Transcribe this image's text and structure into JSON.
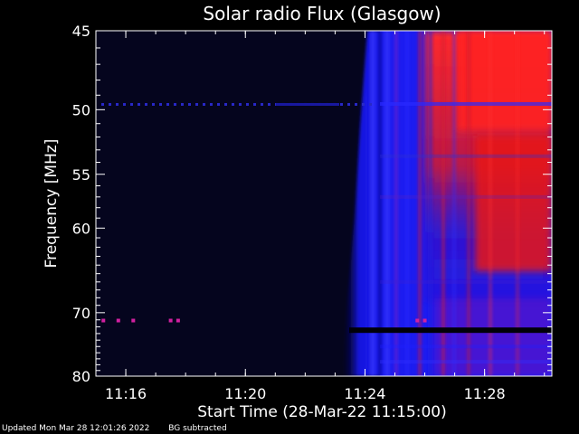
{
  "chart_data": {
    "type": "heatmap",
    "title": "Solar radio Flux (Glasgow)",
    "xlabel": "Start Time (28-Mar-22 11:15:00)",
    "ylabel": "Frequency [MHz]",
    "x_ticks": [
      "11:16",
      "11:20",
      "11:24",
      "11:28"
    ],
    "y_ticks": [
      45,
      50,
      55,
      60,
      70,
      80
    ],
    "x_range": [
      "11:15:00",
      "11:30:15"
    ],
    "y_range": [
      80,
      45
    ],
    "y_scale": "reciprocal",
    "colors": {
      "background": "#000000",
      "quiet": "#05051e",
      "enhanced": "#1a1aff",
      "strong": "#ff1a1a",
      "axes": "#ffffff"
    },
    "features": {
      "burst_onset": "11:23",
      "bright_region_start": "11:25",
      "interference_line_mhz": 49.6,
      "dark_band_mhz": 72.5,
      "magenta_marks_mhz": 71.1,
      "magenta_marks_times": [
        "11:15:15",
        "11:15:45",
        "11:16:15",
        "11:17:30",
        "11:17:45",
        "11:25:45",
        "11:26:00"
      ]
    }
  },
  "footer": {
    "updated": "Updated Mon Mar 28 12:01:26 2022",
    "note": "BG subtracted"
  }
}
